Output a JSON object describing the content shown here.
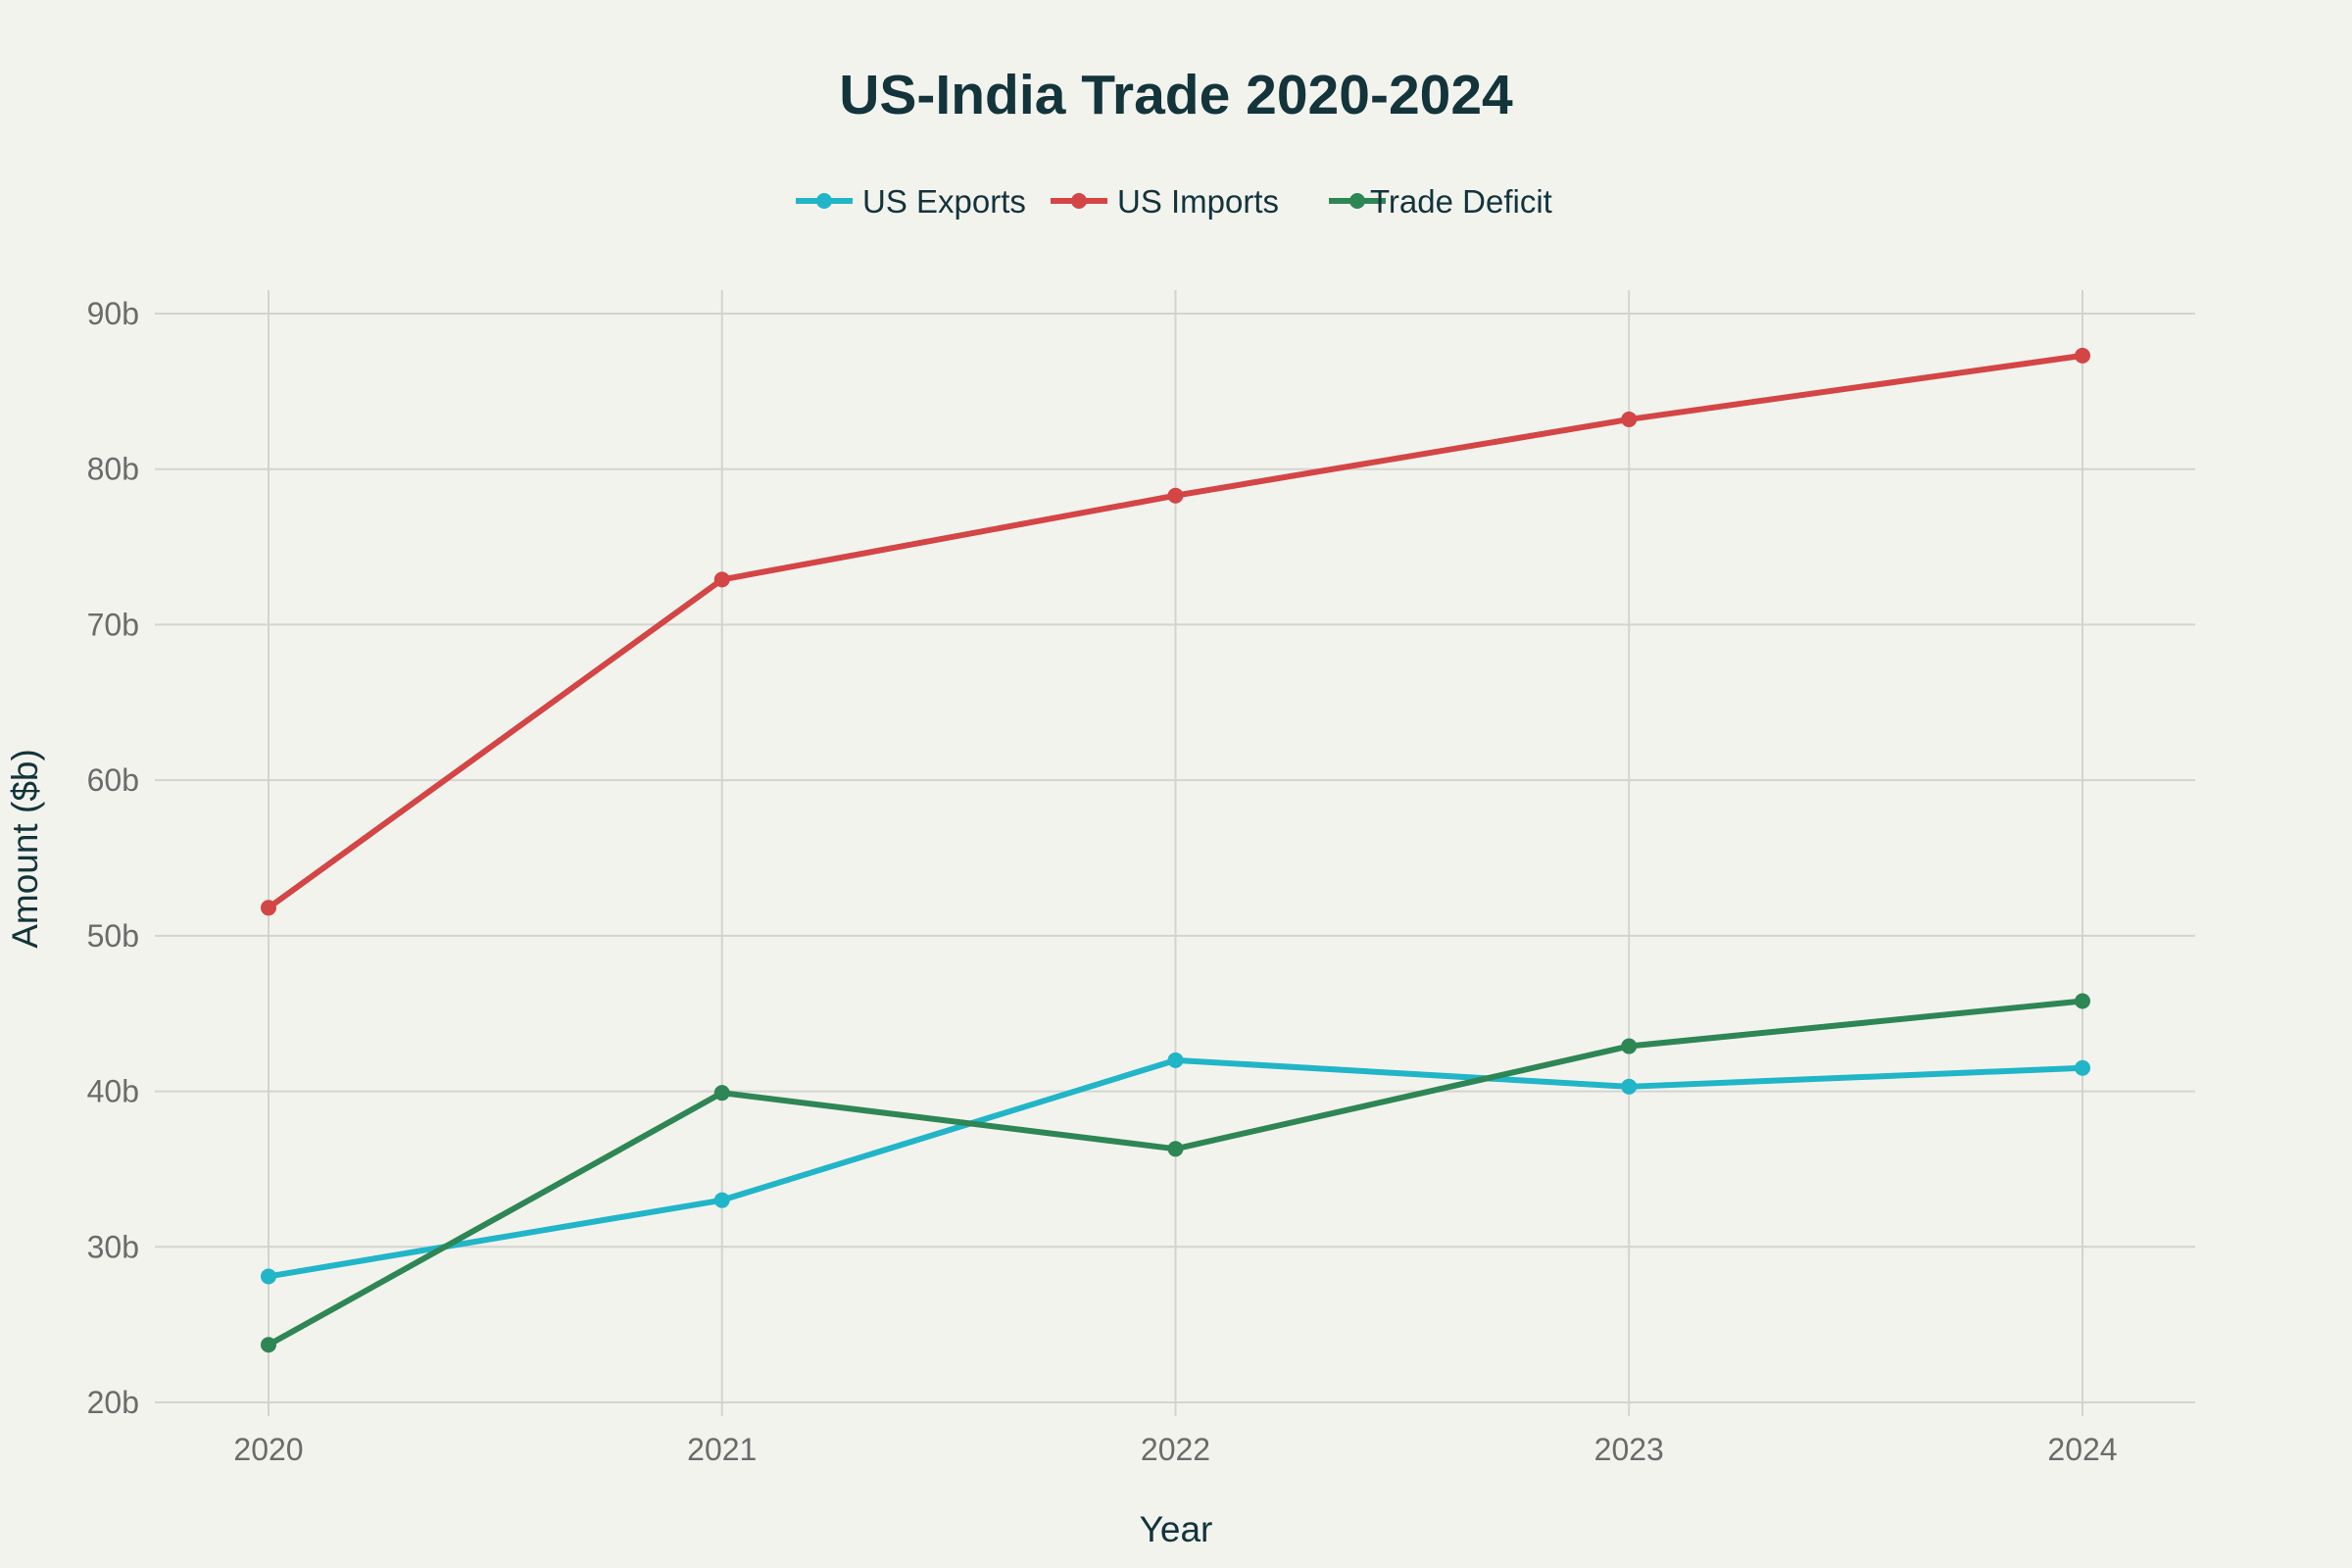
{
  "chart_data": {
    "type": "line",
    "title": "US-India Trade 2020-2024",
    "xlabel": "Year",
    "ylabel": "Amount ($b)",
    "x": [
      "2020",
      "2021",
      "2022",
      "2023",
      "2024"
    ],
    "ylim": [
      20,
      90
    ],
    "yticks": [
      20,
      30,
      40,
      50,
      60,
      70,
      80,
      90
    ],
    "ytick_labels": [
      "20b",
      "30b",
      "40b",
      "50b",
      "60b",
      "70b",
      "80b",
      "90b"
    ],
    "grid": true,
    "legend_position": "top-center",
    "series": [
      {
        "name": "US Exports",
        "color": "#21b5c8",
        "values": [
          28.1,
          33.0,
          42.0,
          40.3,
          41.5
        ]
      },
      {
        "name": "US Imports",
        "color": "#d44545",
        "values": [
          51.8,
          72.9,
          78.3,
          83.2,
          87.3
        ]
      },
      {
        "name": "Trade Deficit",
        "color": "#2e8655",
        "values": [
          23.7,
          39.9,
          36.3,
          42.9,
          45.8
        ]
      }
    ]
  }
}
